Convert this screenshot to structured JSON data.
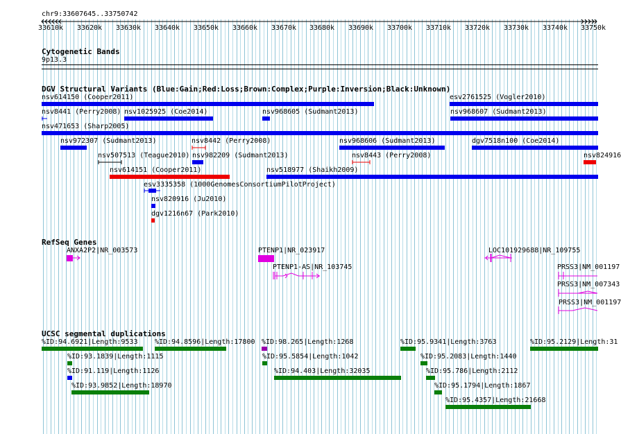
{
  "browser": {
    "location": "chr9:33607645..33750742",
    "ruler_ticks": [
      "33610k",
      "33620k",
      "33630k",
      "33640k",
      "33650k",
      "33660k",
      "33670k",
      "33680k",
      "33690k",
      "33700k",
      "33710k",
      "33720k",
      "33730k",
      "33740k",
      "33750k"
    ]
  },
  "tracks": {
    "cytoband": {
      "title": "Cytogenetic Bands",
      "band": "9p13.3"
    },
    "dgv": {
      "title": "DGV Structural Variants (Blue:Gain;Red:Loss;Brown:Complex;Purple:Inversion;Black:Unknown)",
      "features": [
        {
          "label": "nsv614150 (Cooper2011)",
          "type": "gain"
        },
        {
          "label": "esv2761525 (Vogler2010)",
          "type": "gain"
        },
        {
          "label": "nsv8441 (Perry2008)",
          "type": "gain"
        },
        {
          "label": "nsv1025925 (Coe2014)",
          "type": "gain"
        },
        {
          "label": "nsv968605 (Sudmant2013)",
          "type": "gain"
        },
        {
          "label": "nsv968607 (Sudmant2013)",
          "type": "gain"
        },
        {
          "label": "nsv471653 (Sharp2005)",
          "type": "gain"
        },
        {
          "label": "nsv972307 (Sudmant2013)",
          "type": "gain"
        },
        {
          "label": "nsv8442 (Perry2008)",
          "type": "loss"
        },
        {
          "label": "nsv968606 (Sudmant2013)",
          "type": "gain"
        },
        {
          "label": "dgv7518n100 (Coe2014)",
          "type": "gain"
        },
        {
          "label": "nsv507513 (Teague2010)",
          "type": "unknown"
        },
        {
          "label": "nsv982209 (Sudmant2013)",
          "type": "gain"
        },
        {
          "label": "nsv8443 (Perry2008)",
          "type": "loss"
        },
        {
          "label": "nsv824916",
          "type": "loss"
        },
        {
          "label": "nsv614151 (Cooper2011)",
          "type": "loss"
        },
        {
          "label": "nsv518977 (Shaikh2009)",
          "type": "gain"
        },
        {
          "label": "esv3335358 (1000GenomesConsortiumPilotProject)",
          "type": "gain"
        },
        {
          "label": "nsv820916 (Ju2010)",
          "type": "gain"
        },
        {
          "label": "dgv1216n67 (Park2010)",
          "type": "loss"
        }
      ]
    },
    "refseq": {
      "title": "RefSeq Genes",
      "genes": [
        {
          "label": "ANXA2P2|NR_003573"
        },
        {
          "label": "PTENP1|NR_023917"
        },
        {
          "label": "LOC101929688|NR_109755"
        },
        {
          "label": "PTENP1-AS|NR_103745"
        },
        {
          "label": "PRSS3|NM_001197"
        },
        {
          "label": "PRSS3|NM_007343"
        },
        {
          "label": "PRSS3|NM_001197"
        }
      ]
    },
    "segdup": {
      "title": "UCSC segmental duplications",
      "features": [
        {
          "label": "%ID:94.6921|Length:9533"
        },
        {
          "label": "%ID:94.8596|Length:17800"
        },
        {
          "label": "%ID:98.265|Length:1268"
        },
        {
          "label": "%ID:95.9341|Length:3763"
        },
        {
          "label": "%ID:95.2129|Length:31"
        },
        {
          "label": "%ID:93.1839|Length:1115"
        },
        {
          "label": "%ID:95.5854|Length:1042"
        },
        {
          "label": "%ID:95.2083|Length:1440"
        },
        {
          "label": "%ID:91.119|Length:1126"
        },
        {
          "label": "%ID:94.403|Length:32035"
        },
        {
          "label": "%ID:95.786|Length:2112"
        },
        {
          "label": "%ID:93.9852|Length:18970"
        },
        {
          "label": "%ID:95.1794|Length:1867"
        },
        {
          "label": "%ID:95.4357|Length:21668"
        }
      ]
    }
  },
  "colors": {
    "gain": "#0000ee",
    "loss": "#ee0000",
    "unknown": "#000000",
    "gene": "#e000e0",
    "segdup": "#0a7f0a",
    "segdup_alt": "#9900aa",
    "grid_minor": "#b9dde8",
    "grid_major": "#8ec4d6"
  }
}
